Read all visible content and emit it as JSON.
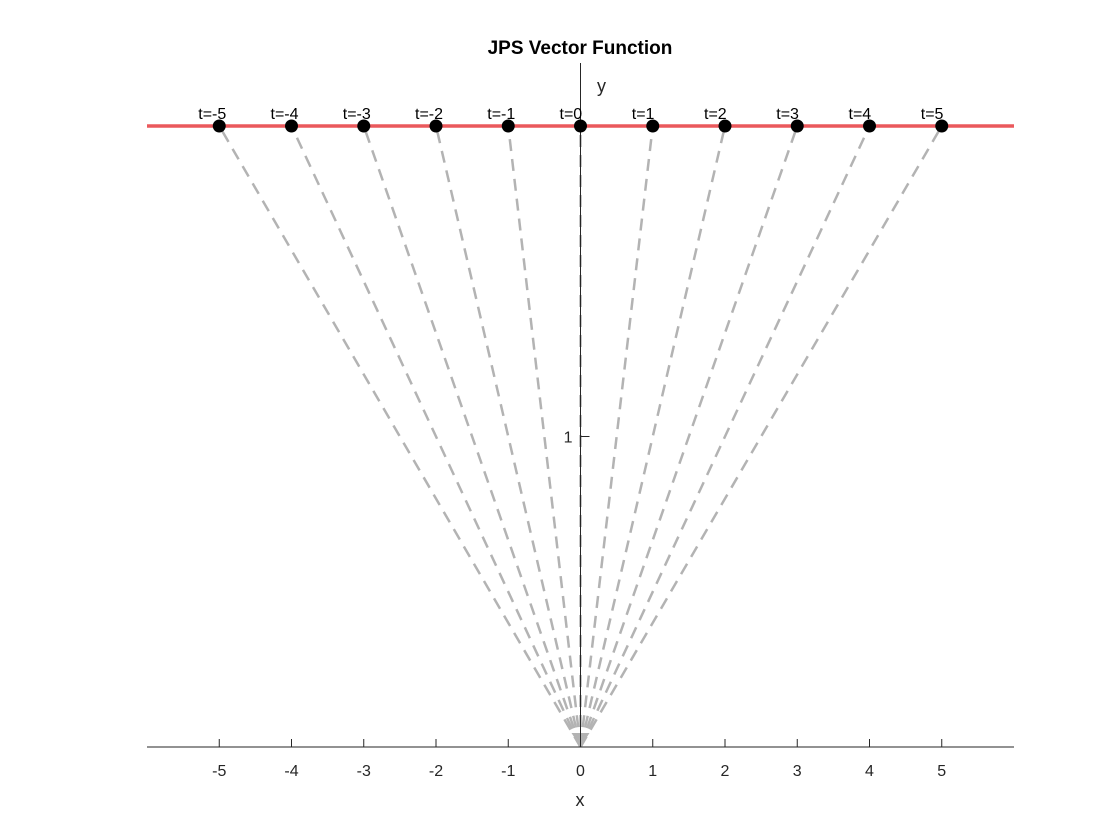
{
  "chart_data": {
    "type": "line",
    "title": "JPS Vector Function",
    "xlabel": "x",
    "ylabel": "y",
    "xlim": [
      -6,
      6
    ],
    "ylim": [
      0,
      2
    ],
    "xticks": [
      -5,
      -4,
      -3,
      -2,
      -1,
      0,
      1,
      2,
      3,
      4,
      5
    ],
    "yticks": [
      1
    ],
    "grid": false,
    "line": {
      "y": 2,
      "color": "#e8474a"
    },
    "points": [
      {
        "t": -5,
        "x": -5,
        "y": 2,
        "label": "t=-5"
      },
      {
        "t": -4,
        "x": -4,
        "y": 2,
        "label": "t=-4"
      },
      {
        "t": -3,
        "x": -3,
        "y": 2,
        "label": "t=-3"
      },
      {
        "t": -2,
        "x": -2,
        "y": 2,
        "label": "t=-2"
      },
      {
        "t": -1,
        "x": -1,
        "y": 2,
        "label": "t=-1"
      },
      {
        "t": 0,
        "x": 0,
        "y": 2,
        "label": "t=0"
      },
      {
        "t": 1,
        "x": 1,
        "y": 2,
        "label": "t=1"
      },
      {
        "t": 2,
        "x": 2,
        "y": 2,
        "label": "t=2"
      },
      {
        "t": 3,
        "x": 3,
        "y": 2,
        "label": "t=3"
      },
      {
        "t": 4,
        "x": 4,
        "y": 2,
        "label": "t=4"
      },
      {
        "t": 5,
        "x": 5,
        "y": 2,
        "label": "t=5"
      }
    ],
    "vectors": {
      "from": [
        0,
        0
      ],
      "style": "dashed",
      "color": "#b3b3b3"
    },
    "point_color": "#000000"
  }
}
